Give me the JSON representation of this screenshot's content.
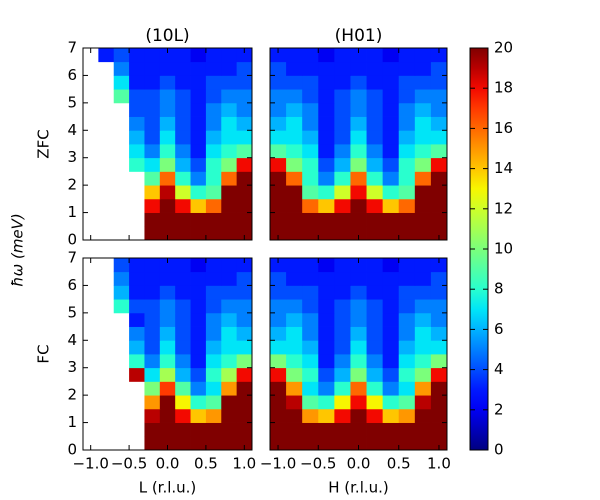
{
  "chart_data": [
    {
      "type": "heatmap",
      "title": "(10L)",
      "row_label": "ZFC",
      "x": [
        -1.0,
        -0.8,
        -0.6,
        -0.4,
        -0.2,
        0.0,
        0.2,
        0.4,
        0.6,
        0.8,
        1.0
      ],
      "y": [
        0.25,
        0.75,
        1.25,
        1.75,
        2.25,
        2.75,
        3.25,
        3.75,
        4.25,
        4.75,
        5.25,
        5.75,
        6.25,
        6.75
      ],
      "values": [
        [
          null,
          null,
          null,
          null,
          20,
          20,
          20,
          20,
          20,
          20,
          20
        ],
        [
          null,
          null,
          null,
          null,
          20,
          20,
          20,
          20,
          20,
          20,
          20
        ],
        [
          null,
          null,
          null,
          null,
          18,
          20,
          18,
          14,
          16,
          20,
          20
        ],
        [
          null,
          null,
          null,
          null,
          14,
          19,
          12,
          8,
          9,
          20,
          20
        ],
        [
          null,
          null,
          null,
          null,
          9,
          16,
          8,
          5,
          8,
          16,
          20
        ],
        [
          null,
          null,
          null,
          8,
          7,
          10,
          6,
          4,
          8,
          10,
          18
        ],
        [
          null,
          null,
          null,
          7,
          5,
          8,
          5,
          3,
          7,
          8,
          9
        ],
        [
          null,
          null,
          null,
          6,
          4,
          7,
          4,
          3,
          6,
          7,
          7
        ],
        [
          null,
          null,
          null,
          5,
          4,
          6,
          4,
          3,
          5,
          7,
          6
        ],
        [
          null,
          null,
          null,
          4,
          4,
          5,
          4,
          3,
          5,
          6,
          5
        ],
        [
          null,
          null,
          9,
          4,
          4,
          5,
          4,
          3,
          4,
          5,
          5
        ],
        [
          null,
          null,
          7,
          3,
          3,
          4,
          3,
          3,
          4,
          4,
          4
        ],
        [
          null,
          null,
          5,
          3,
          3,
          3,
          3,
          3,
          3,
          3,
          4
        ],
        [
          null,
          3,
          4,
          3,
          3,
          3,
          3,
          2,
          3,
          3,
          3
        ]
      ],
      "xlim": [
        -1.1,
        1.1
      ],
      "ylim": [
        0,
        7
      ],
      "xticks": [
        -1,
        -0.5,
        0,
        0.5,
        1
      ],
      "yticks": [
        0,
        1,
        2,
        3,
        4,
        5,
        6,
        7
      ]
    },
    {
      "type": "heatmap",
      "title": "(H01)",
      "x": [
        -1.0,
        -0.8,
        -0.6,
        -0.4,
        -0.2,
        0.0,
        0.2,
        0.4,
        0.6,
        0.8,
        1.0
      ],
      "y": [
        0.25,
        0.75,
        1.25,
        1.75,
        2.25,
        2.75,
        3.25,
        3.75,
        4.25,
        4.75,
        5.25,
        5.75,
        6.25,
        6.75
      ],
      "values": [
        [
          20,
          20,
          20,
          20,
          20,
          20,
          20,
          20,
          20,
          20,
          20
        ],
        [
          20,
          20,
          20,
          20,
          20,
          20,
          20,
          20,
          20,
          20,
          20
        ],
        [
          20,
          20,
          16,
          14,
          18,
          20,
          18,
          14,
          16,
          20,
          20
        ],
        [
          20,
          20,
          9,
          8,
          12,
          18,
          12,
          8,
          9,
          20,
          20
        ],
        [
          20,
          16,
          8,
          5,
          8,
          16,
          8,
          5,
          8,
          16,
          20
        ],
        [
          18,
          10,
          8,
          4,
          6,
          10,
          6,
          4,
          8,
          10,
          18
        ],
        [
          9,
          8,
          7,
          3,
          5,
          8,
          5,
          3,
          7,
          8,
          9
        ],
        [
          7,
          7,
          6,
          3,
          4,
          7,
          4,
          3,
          6,
          7,
          7
        ],
        [
          6,
          7,
          5,
          3,
          4,
          6,
          4,
          3,
          5,
          7,
          6
        ],
        [
          5,
          6,
          5,
          3,
          4,
          5,
          4,
          3,
          5,
          6,
          5
        ],
        [
          5,
          5,
          4,
          3,
          4,
          5,
          4,
          3,
          4,
          5,
          5
        ],
        [
          4,
          4,
          4,
          3,
          3,
          4,
          3,
          3,
          4,
          4,
          4
        ],
        [
          4,
          3,
          3,
          3,
          3,
          3,
          3,
          3,
          3,
          3,
          4
        ],
        [
          3,
          3,
          3,
          2,
          3,
          3,
          3,
          2,
          3,
          3,
          3
        ]
      ],
      "xlim": [
        -1.1,
        1.1
      ],
      "ylim": [
        0,
        7
      ],
      "xticks": [
        -1,
        -0.5,
        0,
        0.5,
        1
      ],
      "yticks": [
        0,
        1,
        2,
        3,
        4,
        5,
        6,
        7
      ]
    },
    {
      "type": "heatmap",
      "row_label": "FC",
      "xlabel": "L (r.l.u.)",
      "x": [
        -1.0,
        -0.8,
        -0.6,
        -0.4,
        -0.2,
        0.0,
        0.2,
        0.4,
        0.6,
        0.8,
        1.0
      ],
      "y": [
        0.25,
        0.75,
        1.25,
        1.75,
        2.25,
        2.75,
        3.25,
        3.75,
        4.25,
        4.75,
        5.25,
        5.75,
        6.25,
        6.75
      ],
      "values": [
        [
          null,
          null,
          null,
          null,
          20,
          20,
          20,
          20,
          20,
          20,
          20
        ],
        [
          null,
          null,
          null,
          null,
          20,
          20,
          20,
          20,
          20,
          20,
          20
        ],
        [
          null,
          null,
          null,
          null,
          19,
          20,
          18,
          14,
          15,
          20,
          20
        ],
        [
          null,
          null,
          null,
          null,
          15,
          20,
          13,
          8,
          9,
          20,
          20
        ],
        [
          null,
          null,
          null,
          null,
          10,
          17,
          9,
          5,
          7,
          15,
          20
        ],
        [
          null,
          null,
          null,
          19,
          7,
          11,
          6,
          4,
          8,
          11,
          18
        ],
        [
          null,
          null,
          null,
          8,
          5,
          8,
          5,
          3,
          7,
          8,
          10
        ],
        [
          null,
          null,
          null,
          6,
          4,
          7,
          4,
          3,
          6,
          7,
          7
        ],
        [
          null,
          null,
          null,
          5,
          4,
          6,
          4,
          3,
          5,
          7,
          6
        ],
        [
          null,
          null,
          null,
          3,
          4,
          5,
          4,
          3,
          5,
          6,
          5
        ],
        [
          null,
          null,
          8,
          4,
          4,
          5,
          4,
          3,
          4,
          5,
          5
        ],
        [
          null,
          null,
          6,
          3,
          3,
          4,
          3,
          3,
          4,
          4,
          4
        ],
        [
          null,
          null,
          5,
          3,
          3,
          3,
          3,
          3,
          3,
          3,
          4
        ],
        [
          null,
          null,
          4,
          3,
          3,
          3,
          3,
          2,
          3,
          3,
          3
        ]
      ],
      "xlim": [
        -1.1,
        1.1
      ],
      "ylim": [
        0,
        7
      ],
      "xticks": [
        {
          "value": -1,
          "label": "−1.0"
        },
        {
          "value": -0.5,
          "label": "−0.5"
        },
        {
          "value": 0,
          "label": "0.0"
        },
        {
          "value": 0.5,
          "label": "0.5"
        },
        {
          "value": 1,
          "label": "1.0"
        }
      ],
      "yticks": [
        0,
        1,
        2,
        3,
        4,
        5,
        6,
        7
      ]
    },
    {
      "type": "heatmap",
      "xlabel": "H (r.l.u.)",
      "x": [
        -1.0,
        -0.8,
        -0.6,
        -0.4,
        -0.2,
        0.0,
        0.2,
        0.4,
        0.6,
        0.8,
        1.0
      ],
      "y": [
        0.25,
        0.75,
        1.25,
        1.75,
        2.25,
        2.75,
        3.25,
        3.75,
        4.25,
        4.75,
        5.25,
        5.75,
        6.25,
        6.75
      ],
      "values": [
        [
          20,
          20,
          20,
          20,
          20,
          20,
          20,
          20,
          20,
          20,
          20
        ],
        [
          20,
          20,
          20,
          20,
          20,
          20,
          20,
          20,
          20,
          20,
          20
        ],
        [
          20,
          20,
          15,
          14,
          18,
          20,
          18,
          14,
          15,
          20,
          20
        ],
        [
          20,
          19,
          9,
          8,
          13,
          18,
          13,
          8,
          9,
          19,
          20
        ],
        [
          20,
          15,
          7,
          5,
          8,
          16,
          8,
          5,
          7,
          15,
          20
        ],
        [
          18,
          10,
          8,
          4,
          6,
          10,
          6,
          4,
          8,
          10,
          18
        ],
        [
          10,
          8,
          7,
          3,
          5,
          8,
          5,
          3,
          7,
          8,
          10
        ],
        [
          7,
          7,
          6,
          3,
          4,
          7,
          4,
          3,
          6,
          7,
          7
        ],
        [
          6,
          7,
          5,
          3,
          4,
          6,
          4,
          3,
          5,
          7,
          6
        ],
        [
          5,
          6,
          5,
          3,
          4,
          5,
          4,
          3,
          5,
          6,
          5
        ],
        [
          5,
          5,
          4,
          3,
          4,
          5,
          4,
          3,
          4,
          5,
          5
        ],
        [
          4,
          4,
          4,
          3,
          3,
          4,
          3,
          3,
          4,
          4,
          4
        ],
        [
          4,
          3,
          3,
          3,
          3,
          3,
          3,
          3,
          3,
          3,
          4
        ],
        [
          3,
          3,
          3,
          2,
          3,
          3,
          3,
          2,
          3,
          3,
          3
        ]
      ],
      "xlim": [
        -1.1,
        1.1
      ],
      "ylim": [
        0,
        7
      ],
      "xticks": [
        {
          "value": -1,
          "label": "−1.0"
        },
        {
          "value": -0.5,
          "label": "−0.5"
        },
        {
          "value": 0,
          "label": "0.0"
        },
        {
          "value": 0.5,
          "label": "0.5"
        },
        {
          "value": 1,
          "label": "1.0"
        }
      ],
      "yticks": [
        0,
        1,
        2,
        3,
        4,
        5,
        6,
        7
      ]
    }
  ],
  "shared": {
    "ylabel": "ħω (meV)",
    "colorbar": {
      "colormap": "jet",
      "lim": [
        0,
        20
      ],
      "ticks": [
        0,
        2,
        4,
        6,
        8,
        10,
        12,
        14,
        16,
        18,
        20
      ]
    }
  }
}
